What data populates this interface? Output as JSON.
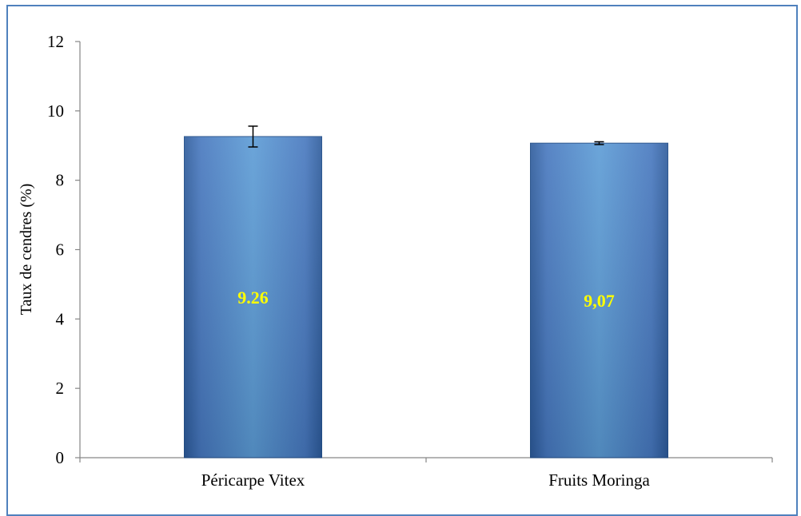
{
  "chart_data": {
    "type": "bar",
    "categories": [
      "Péricarpe Vitex",
      "Fruits Moringa"
    ],
    "values": [
      9.26,
      9.07
    ],
    "error": [
      0.3,
      0.04
    ],
    "data_labels": [
      "9.26",
      "9,07"
    ],
    "title": "",
    "xlabel": "",
    "ylabel": "Taux de cendres (%)",
    "ylim": [
      0,
      12
    ],
    "yticks": [
      0,
      2,
      4,
      6,
      8,
      10,
      12
    ],
    "grid": false,
    "legend": "none",
    "colors": {
      "bar_light": "#5b9bd5",
      "bar_mid": "#4677be",
      "bar_dark": "#2c5a9a",
      "bar_edge": "#24508a",
      "data_label": "#ffff00",
      "frame": "#4f81bd",
      "axis": "#868686"
    }
  }
}
